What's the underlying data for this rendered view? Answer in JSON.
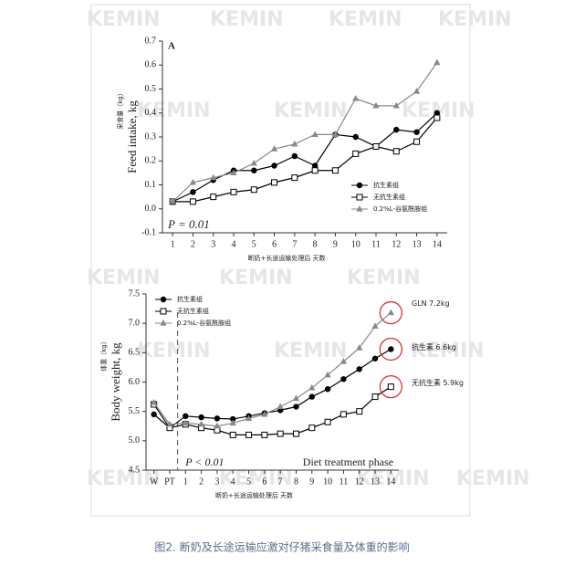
{
  "watermark": "KEMIN",
  "caption": "图2. 断奶及长途运输应激对仔猪采食量及体重的影响",
  "chart_data": [
    {
      "type": "line",
      "panel_label": "A",
      "y_label": "Feed intake, kg",
      "y_label_cn": "采食量（kg）",
      "x_label_cn": "断奶+长途运输处理后 天数",
      "annotations": [
        "P = 0.01"
      ],
      "x": [
        1,
        2,
        3,
        4,
        5,
        6,
        7,
        8,
        9,
        10,
        11,
        12,
        13,
        14
      ],
      "xlim": [
        0.5,
        14.5
      ],
      "xticks": [
        1,
        2,
        3,
        4,
        5,
        6,
        7,
        8,
        9,
        10,
        11,
        12,
        13,
        14
      ],
      "ylim": [
        -0.1,
        0.7
      ],
      "yticks": [
        -0.1,
        {
          "value": 0,
          "label": "0.0"
        },
        0.1,
        0.2,
        0.3,
        0.4,
        0.5,
        0.6,
        0.7
      ],
      "legend": "lower right",
      "series": [
        {
          "name": "抗生素组",
          "color": "#000000",
          "marker": "circle",
          "values": [
            0.03,
            0.07,
            0.12,
            0.16,
            0.16,
            0.18,
            0.22,
            0.18,
            0.31,
            0.3,
            0.26,
            0.33,
            0.32,
            0.4
          ]
        },
        {
          "name": "无抗生素组",
          "color": "#000000",
          "marker": "square",
          "values": [
            0.03,
            0.03,
            0.05,
            0.07,
            0.08,
            0.11,
            0.13,
            0.16,
            0.16,
            0.23,
            0.26,
            0.24,
            0.28,
            0.38
          ]
        },
        {
          "name": "0.2%L-谷氨酰胺组",
          "color": "#888888",
          "marker": "triangle",
          "values": [
            0.03,
            0.11,
            0.13,
            0.15,
            0.19,
            0.25,
            0.27,
            0.31,
            0.31,
            0.46,
            0.43,
            0.43,
            0.49,
            0.61
          ]
        }
      ]
    },
    {
      "type": "line",
      "y_label": "Body weight, kg",
      "y_label_cn": "体重（kg）",
      "x_label_cn": "断奶+长途运输处理后 天数",
      "annotations": [
        "GLN 7.2kg",
        "抗生素 6.6kg",
        "无抗生素 5.9kg",
        "P < 0.01",
        "Diet treatment phase"
      ],
      "categories": [
        "W",
        "PT",
        "1",
        "2",
        "3",
        "4",
        "5",
        "6",
        "7",
        "8",
        "9",
        "10",
        "11",
        "12",
        "13",
        "14"
      ],
      "ylim": [
        4.5,
        7.5
      ],
      "yticks": [
        4.5,
        {
          "value": 5,
          "label": "5.0"
        },
        5.5,
        {
          "value": 6,
          "label": "6.0"
        },
        6.5,
        {
          "value": 7,
          "label": "7.0"
        },
        7.5
      ],
      "legend": "upper left",
      "series": [
        {
          "name": "抗生素组",
          "color": "#000000",
          "marker": "circle",
          "values": [
            5.45,
            5.22,
            5.42,
            5.4,
            5.38,
            5.37,
            5.42,
            5.47,
            5.52,
            5.58,
            5.75,
            5.88,
            6.05,
            6.22,
            6.4,
            6.56
          ]
        },
        {
          "name": "无抗生素组",
          "color": "#000000",
          "marker": "square",
          "values": [
            5.62,
            5.22,
            5.28,
            5.22,
            5.18,
            5.1,
            5.1,
            5.1,
            5.12,
            5.12,
            5.22,
            5.32,
            5.45,
            5.5,
            5.75,
            5.92
          ]
        },
        {
          "name": "0.2%L-谷氨酰胺组",
          "color": "#888888",
          "marker": "triangle",
          "values": [
            5.65,
            5.28,
            5.3,
            5.28,
            5.25,
            5.3,
            5.38,
            5.45,
            5.58,
            5.72,
            5.9,
            6.12,
            6.35,
            6.58,
            6.95,
            7.18
          ]
        }
      ]
    }
  ]
}
